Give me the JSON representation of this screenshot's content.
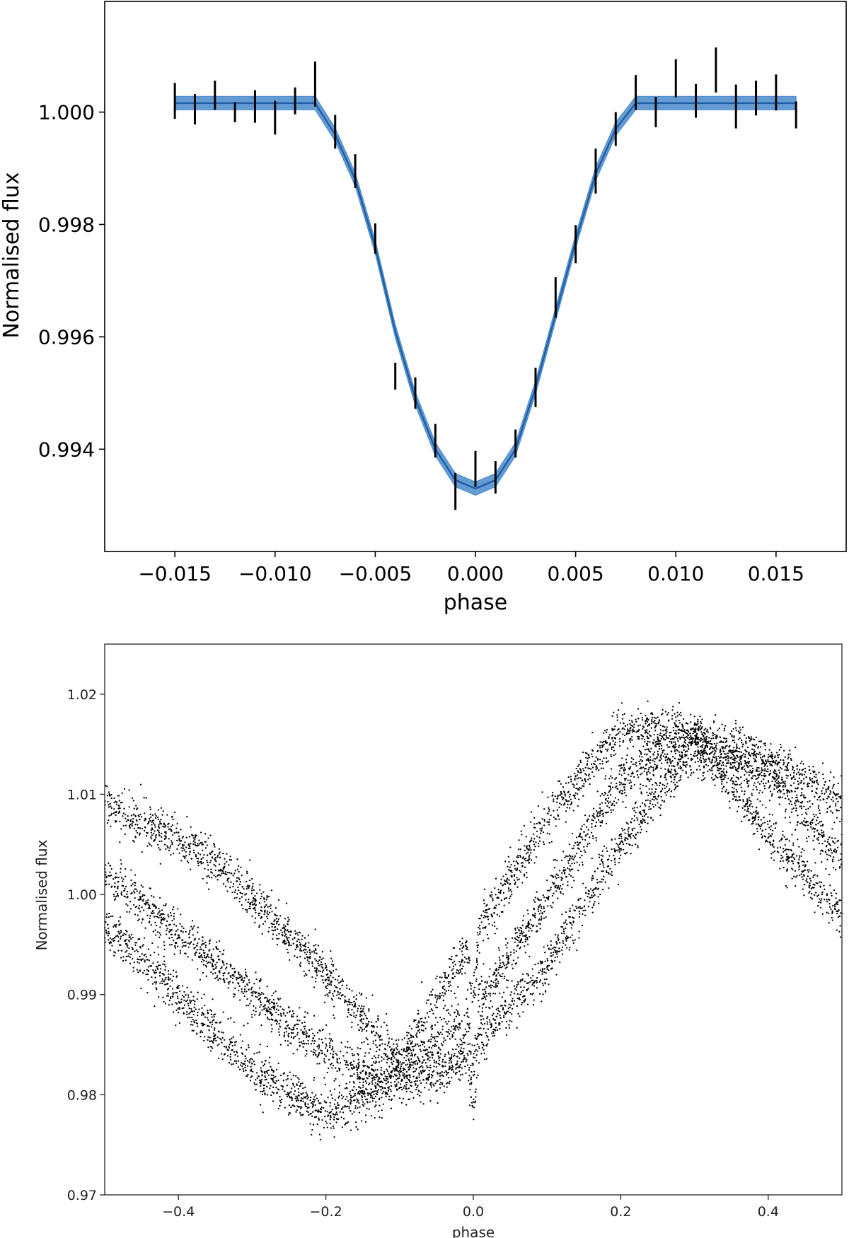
{
  "colors": {
    "model_line": "#1f5fa6",
    "model_band": "#4a8acb",
    "data": "#000000",
    "axes": "#000000"
  },
  "chart_data": [
    {
      "type": "line",
      "title": "",
      "xlabel": "phase",
      "ylabel": "Normalised flux",
      "xlim": [
        -0.0185,
        0.0185
      ],
      "ylim": [
        0.99218,
        1.00197
      ],
      "xticks": [
        -0.015,
        -0.01,
        -0.005,
        0.0,
        0.005,
        0.01,
        0.015
      ],
      "xtick_labels": [
        "−0.015",
        "−0.010",
        "−0.005",
        "0.000",
        "0.005",
        "0.010",
        "0.015"
      ],
      "yticks": [
        0.994,
        0.996,
        0.998,
        1.0
      ],
      "ytick_labels": [
        "0.994",
        "0.996",
        "0.998",
        "1.000"
      ],
      "grid": false,
      "legend": "none",
      "model": {
        "name": "",
        "x": [
          -0.015,
          -0.008,
          -0.007,
          -0.006,
          -0.005,
          -0.004,
          -0.003,
          -0.002,
          -0.001,
          0.0,
          0.001,
          0.002,
          0.003,
          0.004,
          0.005,
          0.006,
          0.007,
          0.008,
          0.016
        ],
        "y": [
          1.00016,
          1.00016,
          0.9996,
          0.9988,
          0.9976,
          0.9961,
          0.9949,
          0.994,
          0.99345,
          0.9933,
          0.99345,
          0.994,
          0.9951,
          0.9964,
          0.9977,
          0.9989,
          0.9997,
          1.00016,
          1.00016
        ],
        "band_halfwidth": 0.00012
      },
      "error_bars": {
        "x": [
          -0.015,
          -0.014,
          -0.013,
          -0.012,
          -0.011,
          -0.01,
          -0.009,
          -0.008,
          -0.007,
          -0.006,
          -0.005,
          -0.004,
          -0.003,
          -0.002,
          -0.001,
          0.0,
          0.001,
          0.002,
          0.003,
          0.004,
          0.005,
          0.006,
          0.007,
          0.008,
          0.009,
          0.01,
          0.011,
          0.012,
          0.013,
          0.014,
          0.015,
          0.016
        ],
        "y": [
          1.0002,
          1.00005,
          1.0003,
          1.0,
          1.0001,
          0.9999,
          1.0002,
          1.0005,
          0.99965,
          0.99895,
          0.99775,
          0.9953,
          0.995,
          0.99415,
          0.99325,
          0.99365,
          0.9935,
          0.9941,
          0.9951,
          0.9967,
          0.99765,
          0.99895,
          0.9997,
          1.00035,
          1.0,
          1.0006,
          1.0002,
          1.00075,
          1.0001,
          1.00025,
          1.00035,
          0.99995
        ],
        "err": [
          0.00032,
          0.00027,
          0.00026,
          0.00018,
          0.00029,
          0.0003,
          0.00024,
          0.0004,
          0.0003,
          0.0003,
          0.00027,
          0.00024,
          0.00028,
          0.0003,
          0.00033,
          0.00032,
          0.00029,
          0.00025,
          0.00035,
          0.00036,
          0.00034,
          0.0004,
          0.0003,
          0.00031,
          0.00027,
          0.00034,
          0.0003,
          0.0004,
          0.00039,
          0.00031,
          0.00032,
          0.00024
        ]
      }
    },
    {
      "type": "scatter",
      "title": "",
      "xlabel": "phase",
      "ylabel": "Normalised flux",
      "xlim": [
        -0.5,
        0.5
      ],
      "ylim": [
        0.97,
        1.025
      ],
      "xticks": [
        -0.4,
        -0.2,
        0.0,
        0.2,
        0.4
      ],
      "xtick_labels": [
        "−0.4",
        "−0.2",
        "0.0",
        "0.2",
        "0.4"
      ],
      "yticks": [
        0.97,
        0.98,
        0.99,
        1.0,
        1.01,
        1.02
      ],
      "ytick_labels": [
        "0.97",
        "0.98",
        "0.99",
        "1.00",
        "1.01",
        "1.02"
      ],
      "grid": false,
      "legend": "none",
      "series": [
        {
          "name": "",
          "x": [
            -0.5,
            -0.35,
            -0.2,
            -0.1,
            0.0,
            0.1,
            0.2,
            0.28,
            0.4,
            0.5
          ],
          "y": [
            1.009,
            1.0035,
            0.992,
            0.9835,
            0.9955,
            1.0075,
            1.0165,
            1.0165,
            1.0135,
            1.0095
          ]
        },
        {
          "name": "",
          "x": [
            -0.5,
            -0.35,
            -0.2,
            -0.12,
            -0.05,
            0.0,
            0.1,
            0.2,
            0.3,
            0.4,
            0.5
          ],
          "y": [
            1.002,
            0.993,
            0.984,
            0.9815,
            0.982,
            0.9845,
            0.993,
            1.005,
            1.0145,
            1.012,
            1.0035
          ]
        },
        {
          "name": "",
          "x": [
            -0.5,
            -0.4,
            -0.3,
            -0.2,
            -0.12,
            0.0,
            0.1,
            0.2,
            0.3,
            0.4,
            0.5
          ],
          "y": [
            0.997,
            0.99,
            0.9825,
            0.978,
            0.981,
            0.9885,
            0.9995,
            1.0115,
            1.0155,
            1.006,
            0.998
          ]
        }
      ],
      "n_points_per_series": 2600
    }
  ]
}
